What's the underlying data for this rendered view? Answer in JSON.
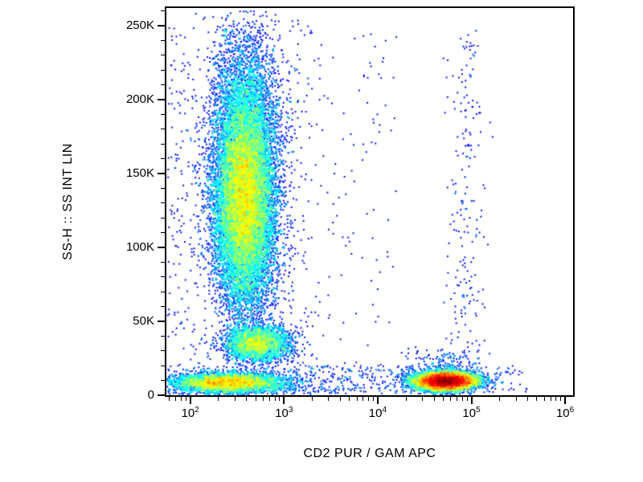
{
  "figure": {
    "background": "#ffffff",
    "axis_color": "#000000"
  },
  "chart_data": {
    "type": "scatter",
    "subtype": "flow-cytometry-pseudocolor-density-plot",
    "title": "",
    "xlabel": "CD2 PUR / GAM APC",
    "ylabel": "SS-H :: SS INT LIN",
    "x_scale": "log10",
    "y_scale": "linear",
    "x_log_min": 1.745,
    "x_log_max": 6.085,
    "y_min": 0,
    "y_max": 262000,
    "grid": false,
    "legend": false,
    "colormap": "jet",
    "colormap_stops": [
      "#00008f",
      "#0000ff",
      "#00ffff",
      "#00ff00",
      "#ffff00",
      "#ff0000",
      "#8f0000"
    ],
    "seed": 7,
    "x_axis": {
      "major_ticks": [
        {
          "log": 2,
          "base": "10",
          "exp": "2"
        },
        {
          "log": 3,
          "base": "10",
          "exp": "3"
        },
        {
          "log": 4,
          "base": "10",
          "exp": "4"
        },
        {
          "log": 5,
          "base": "10",
          "exp": "5"
        },
        {
          "log": 6,
          "base": "10",
          "exp": "6"
        }
      ],
      "minor_decades": [
        1,
        2,
        3,
        4,
        5
      ],
      "minor_multiples": [
        2,
        3,
        4,
        5,
        6,
        7,
        8,
        9
      ]
    },
    "y_axis": {
      "major_ticks": [
        {
          "value": 0,
          "label": "0"
        },
        {
          "value": 50000,
          "label": "50K"
        },
        {
          "value": 100000,
          "label": "100K"
        },
        {
          "value": 150000,
          "label": "150K"
        },
        {
          "value": 200000,
          "label": "200K"
        },
        {
          "value": 250000,
          "label": "250K"
        }
      ],
      "minor_step": 10000
    },
    "populations": [
      {
        "name": "ssc-high-main",
        "n": 16000,
        "x": {
          "dist": "gauss",
          "mean": 2.58,
          "sd": 0.16
        },
        "y": {
          "dist": "gauss",
          "mean": 132000,
          "sd": 36000
        }
      },
      {
        "name": "ssc-high-upper-tail",
        "n": 2200,
        "x": {
          "dist": "gauss",
          "mean": 2.6,
          "sd": 0.19
        },
        "y": {
          "dist": "gauss",
          "mean": 192000,
          "sd": 30000
        }
      },
      {
        "name": "ssc-mid-band",
        "n": 2600,
        "x": {
          "dist": "gauss",
          "mean": 2.72,
          "sd": 0.18
        },
        "y": {
          "dist": "gauss",
          "mean": 35000,
          "sd": 6000
        }
      },
      {
        "name": "debris-low-left",
        "n": 4200,
        "x": {
          "dist": "gauss",
          "mean": 2.4,
          "sd": 0.3
        },
        "y": {
          "dist": "gauss",
          "mean": 8500,
          "sd": 3500
        }
      },
      {
        "name": "cd2-positive",
        "n": 8500,
        "x": {
          "dist": "gauss",
          "mean": 4.72,
          "sd": 0.16
        },
        "y": {
          "dist": "gauss",
          "mean": 9500,
          "sd": 3000
        }
      },
      {
        "name": "cd2-halo",
        "n": 220,
        "x": {
          "dist": "gauss",
          "mean": 4.72,
          "sd": 0.22
        },
        "y": {
          "dist": "gauss",
          "mean": 19000,
          "sd": 6000
        }
      },
      {
        "name": "cd2-high-streak",
        "n": 210,
        "x": {
          "dist": "gauss",
          "mean": 4.95,
          "sd": 0.11
        },
        "y": {
          "dist": "uniform",
          "min": 15000,
          "max": 250000
        }
      },
      {
        "name": "sparse-left-field",
        "n": 330,
        "x": {
          "dist": "uniform",
          "min": 1.78,
          "max": 3.3
        },
        "y": {
          "dist": "uniform",
          "min": 0,
          "max": 255000
        }
      },
      {
        "name": "sparse-mid-field",
        "n": 150,
        "x": {
          "dist": "uniform",
          "min": 2.95,
          "max": 4.2
        },
        "y": {
          "dist": "uniform",
          "min": 20000,
          "max": 250000
        }
      },
      {
        "name": "bottom-sparse",
        "n": 280,
        "x": {
          "dist": "uniform",
          "min": 3.0,
          "max": 4.4
        },
        "y": {
          "dist": "uniform",
          "min": 1000,
          "max": 20000
        }
      },
      {
        "name": "left-edge-sparse",
        "n": 90,
        "x": {
          "dist": "uniform",
          "min": 1.76,
          "max": 2.05
        },
        "y": {
          "dist": "uniform",
          "min": 0,
          "max": 250000
        }
      },
      {
        "name": "far-right-sparse",
        "n": 45,
        "x": {
          "dist": "uniform",
          "min": 5.1,
          "max": 5.6
        },
        "y": {
          "dist": "uniform",
          "min": 2000,
          "max": 20000
        }
      }
    ]
  }
}
